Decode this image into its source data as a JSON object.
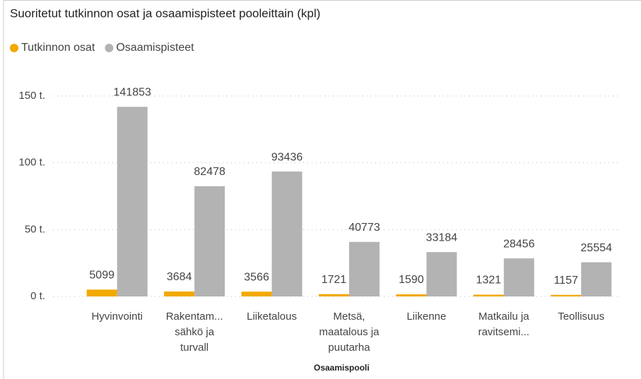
{
  "chart_data": {
    "type": "bar",
    "title": "Suoritetut tutkinnon osat ja osaamispisteet pooleittain (kpl)",
    "x_label": "Osaamispooli",
    "categories": [
      "Hyvinvointi",
      "Rakentam... sähkö ja turvall",
      "Liiketalous",
      "Metsä, maatalous ja puutarha",
      "Liikenne",
      "Matkailu ja ravitsemi...",
      "Teollisuus"
    ],
    "series": [
      {
        "name": "Tutkinnon osat",
        "color": "#f2a900",
        "values": [
          5099,
          3684,
          3566,
          1721,
          1590,
          1321,
          1157
        ]
      },
      {
        "name": "Osaamispisteet",
        "color": "#b3b3b3",
        "values": [
          141853,
          82478,
          93436,
          40773,
          33184,
          28456,
          25554
        ]
      }
    ],
    "ylim": [
      0,
      160000
    ],
    "yticks": [
      {
        "value": 0,
        "label": "0 t."
      },
      {
        "value": 50000,
        "label": "50 t."
      },
      {
        "value": 100000,
        "label": "100 t."
      },
      {
        "value": 150000,
        "label": "150 t."
      }
    ],
    "grid": true,
    "legend": "top-left"
  }
}
